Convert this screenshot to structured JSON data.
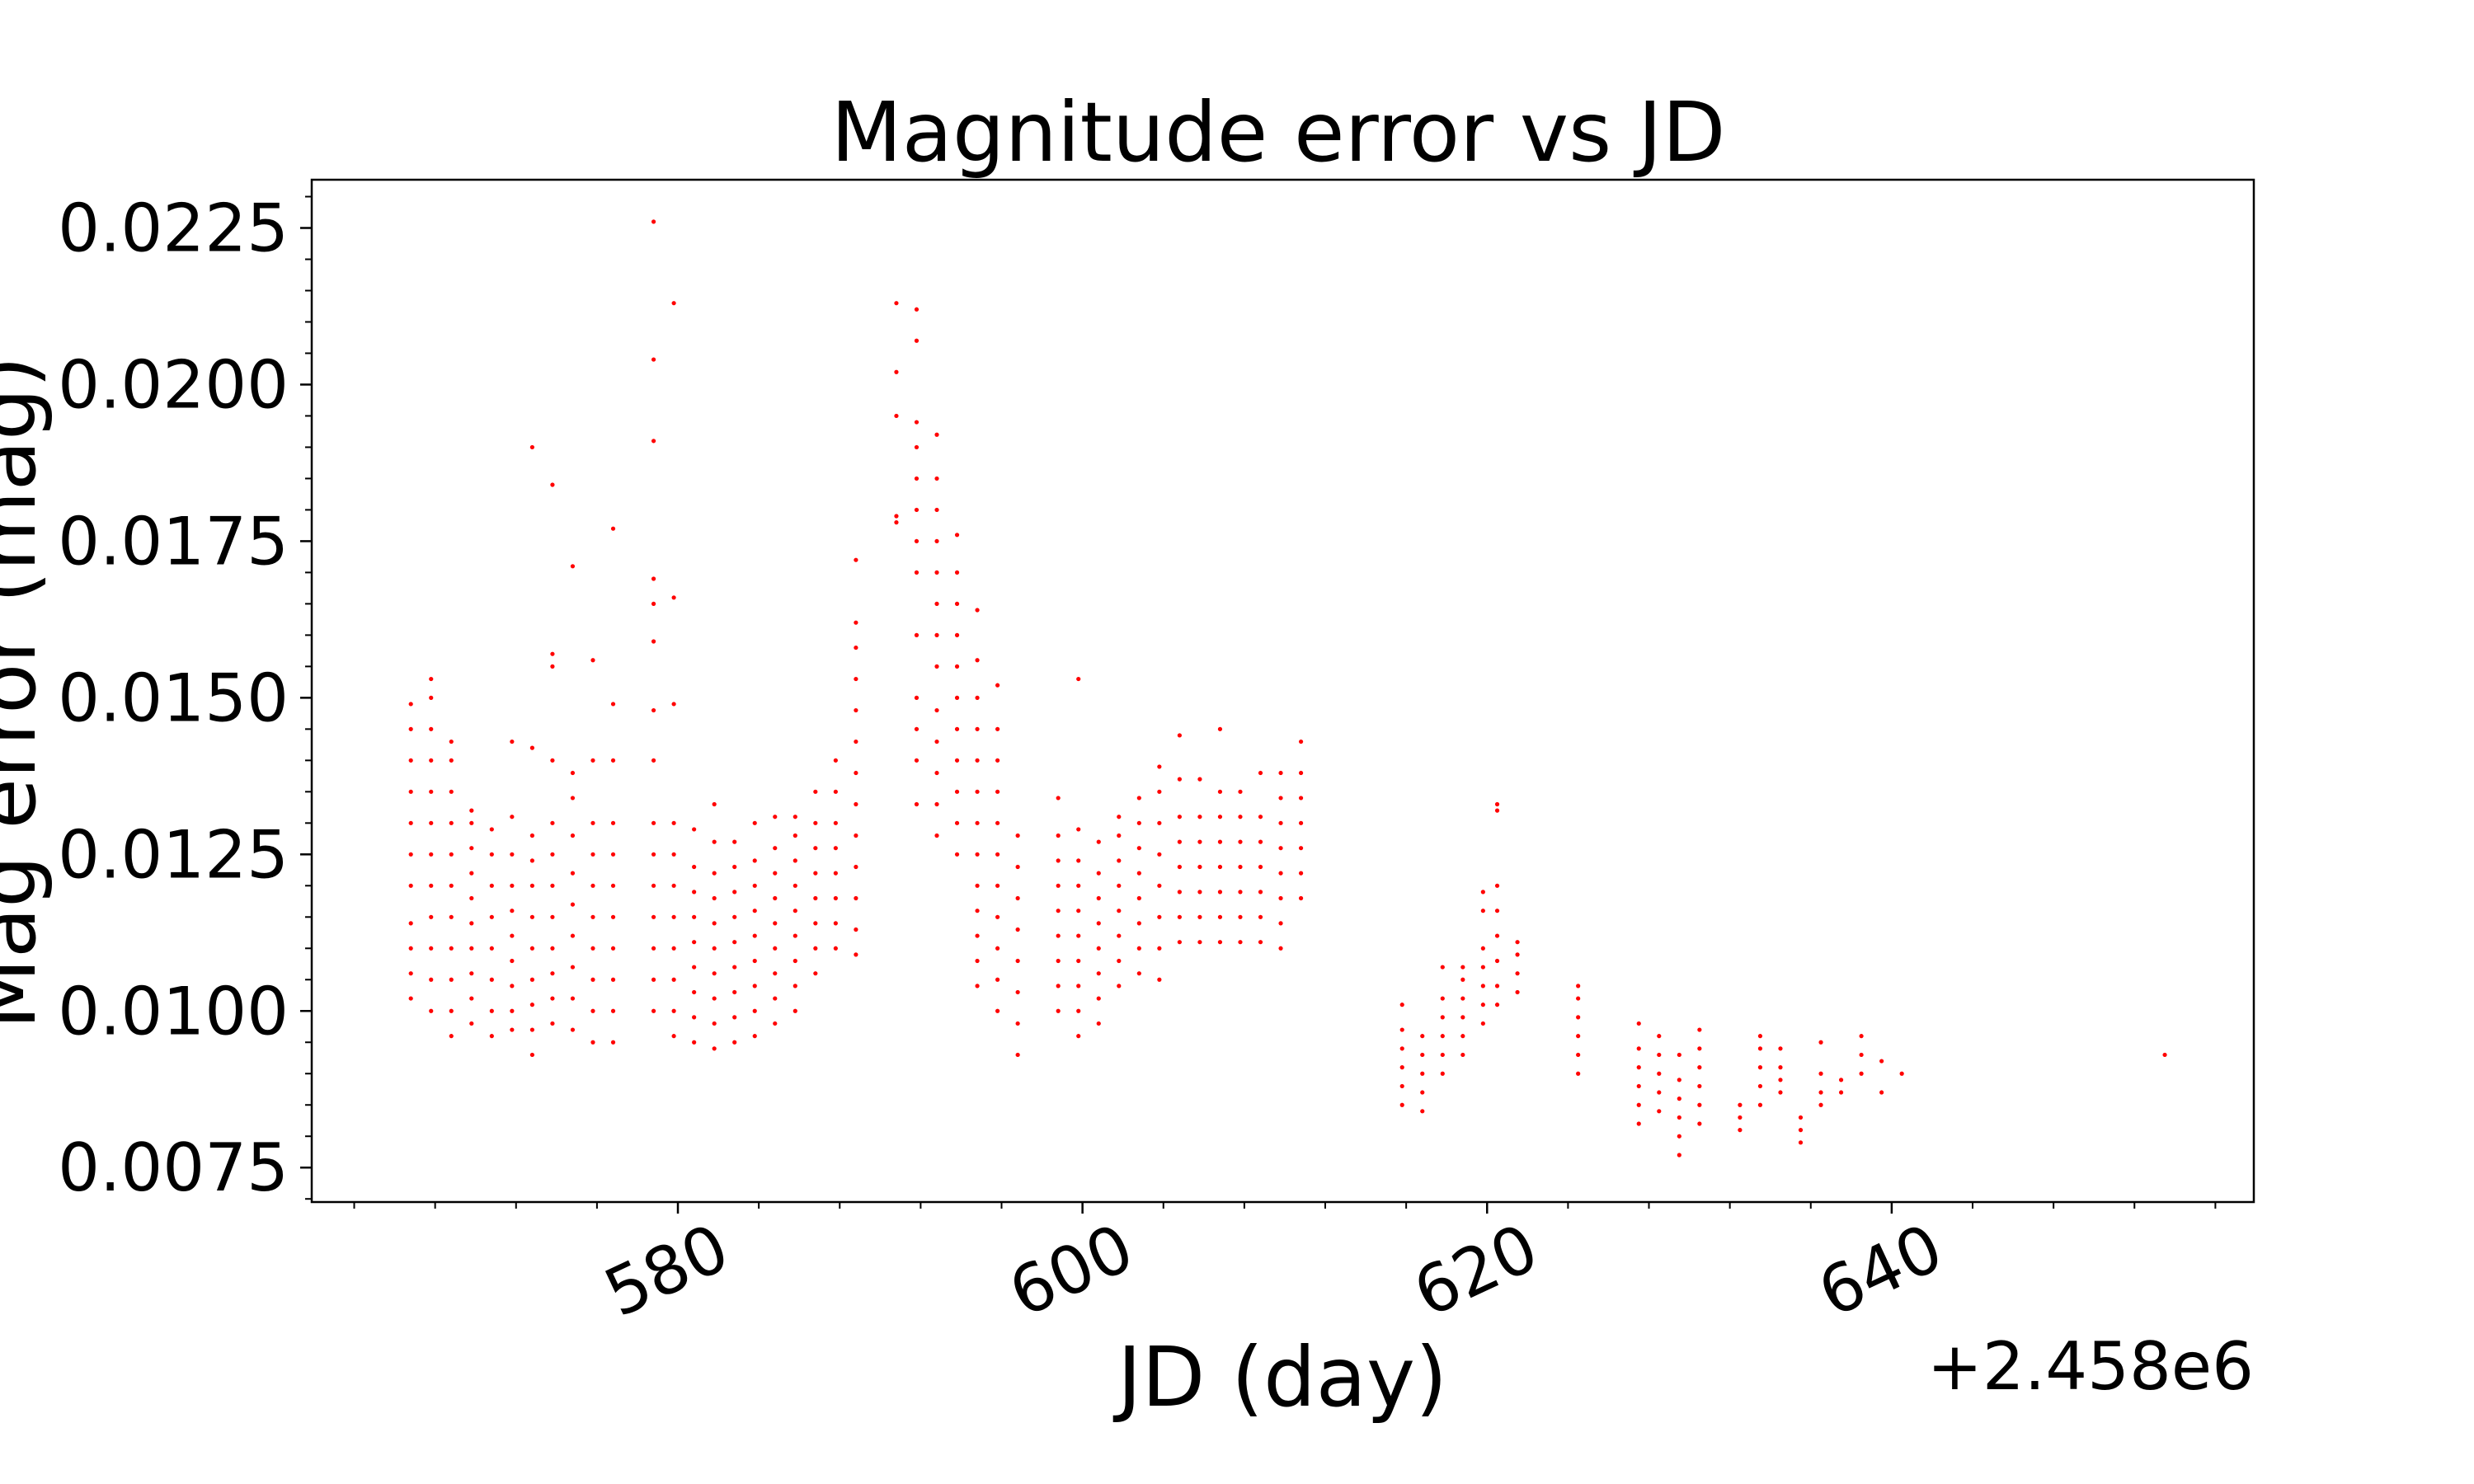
{
  "chart_data": {
    "type": "scatter",
    "title": "Magnitude error vs JD",
    "xlabel": "JD (day)",
    "ylabel": "Mag error (mag)",
    "x_offset_label": "+2.458e6",
    "x_offset": 2458000,
    "xlim": [
      561.9,
      657.9
    ],
    "ylim": [
      0.00695,
      0.02327
    ],
    "xticks": [
      580,
      600,
      620,
      640
    ],
    "xtick_labels": [
      "580",
      "600",
      "620",
      "640"
    ],
    "yticks": [
      0.0075,
      0.01,
      0.0125,
      0.015,
      0.0175,
      0.02,
      0.0225
    ],
    "ytick_labels": [
      "0.0075",
      "0.0100",
      "0.0125",
      "0.0150",
      "0.0175",
      "0.0200",
      "0.0225"
    ],
    "marker_color": "#ff0000",
    "grid": false,
    "legend": "none",
    "point_groups": [
      {
        "x": 566.8,
        "y": [
          0.0102,
          0.0106,
          0.011,
          0.0114,
          0.012,
          0.0125,
          0.013,
          0.0135,
          0.014,
          0.0145,
          0.0149
        ]
      },
      {
        "x": 567.8,
        "y": [
          0.01,
          0.0105,
          0.011,
          0.0115,
          0.012,
          0.0125,
          0.013,
          0.0135,
          0.014,
          0.0145,
          0.015,
          0.0153
        ]
      },
      {
        "x": 568.8,
        "y": [
          0.0096,
          0.01,
          0.0105,
          0.011,
          0.0115,
          0.012,
          0.0125,
          0.013,
          0.0135,
          0.014,
          0.0143
        ]
      },
      {
        "x": 569.8,
        "y": [
          0.0098,
          0.0102,
          0.0106,
          0.011,
          0.0114,
          0.0118,
          0.0122,
          0.0126,
          0.013,
          0.0132
        ]
      },
      {
        "x": 570.8,
        "y": [
          0.0096,
          0.01,
          0.0105,
          0.011,
          0.0115,
          0.012,
          0.0125,
          0.0129
        ]
      },
      {
        "x": 571.8,
        "y": [
          0.0097,
          0.01,
          0.0104,
          0.0108,
          0.0112,
          0.0116,
          0.012,
          0.0125,
          0.0131,
          0.0143
        ]
      },
      {
        "x": 572.8,
        "y": [
          0.0093,
          0.0097,
          0.0101,
          0.0105,
          0.011,
          0.0115,
          0.012,
          0.0124,
          0.0128,
          0.0142,
          0.019
        ]
      },
      {
        "x": 573.8,
        "y": [
          0.0098,
          0.0102,
          0.0106,
          0.011,
          0.0115,
          0.012,
          0.0125,
          0.013,
          0.014,
          0.0155,
          0.0157,
          0.0184
        ]
      },
      {
        "x": 574.8,
        "y": [
          0.0097,
          0.0102,
          0.0107,
          0.0112,
          0.0117,
          0.0122,
          0.0128,
          0.0134,
          0.0138,
          0.0171
        ]
      },
      {
        "x": 575.8,
        "y": [
          0.0095,
          0.01,
          0.0105,
          0.011,
          0.0115,
          0.012,
          0.0125,
          0.013,
          0.014,
          0.0156
        ]
      },
      {
        "x": 576.8,
        "y": [
          0.0095,
          0.01,
          0.0105,
          0.011,
          0.0115,
          0.012,
          0.0125,
          0.013,
          0.014,
          0.0149,
          0.0177
        ]
      },
      {
        "x": 578.8,
        "y": [
          0.01,
          0.0105,
          0.011,
          0.0115,
          0.012,
          0.0125,
          0.013,
          0.014,
          0.0148,
          0.0159,
          0.0165,
          0.0169,
          0.0191,
          0.0204,
          0.0226
        ]
      },
      {
        "x": 579.8,
        "y": [
          0.0096,
          0.01,
          0.0105,
          0.011,
          0.0115,
          0.012,
          0.0125,
          0.013,
          0.0149,
          0.0166,
          0.0213
        ]
      },
      {
        "x": 580.8,
        "y": [
          0.0095,
          0.0099,
          0.0103,
          0.0107,
          0.0111,
          0.0115,
          0.0119,
          0.0123,
          0.0129
        ]
      },
      {
        "x": 581.8,
        "y": [
          0.0094,
          0.0098,
          0.0102,
          0.0106,
          0.011,
          0.0114,
          0.0118,
          0.0122,
          0.0127,
          0.0133
        ]
      },
      {
        "x": 582.8,
        "y": [
          0.0095,
          0.0099,
          0.0103,
          0.0107,
          0.0111,
          0.0115,
          0.0119,
          0.0123,
          0.0127
        ]
      },
      {
        "x": 583.8,
        "y": [
          0.0096,
          0.01,
          0.0104,
          0.0108,
          0.0112,
          0.0116,
          0.012,
          0.0124,
          0.013
        ]
      },
      {
        "x": 584.8,
        "y": [
          0.0098,
          0.0102,
          0.0106,
          0.011,
          0.0114,
          0.0118,
          0.0122,
          0.0126,
          0.0131
        ]
      },
      {
        "x": 585.8,
        "y": [
          0.01,
          0.0104,
          0.0108,
          0.0112,
          0.0116,
          0.012,
          0.0124,
          0.0128,
          0.0131
        ]
      },
      {
        "x": 586.8,
        "y": [
          0.0106,
          0.011,
          0.0114,
          0.0118,
          0.0122,
          0.0126,
          0.013,
          0.0135
        ]
      },
      {
        "x": 587.8,
        "y": [
          0.011,
          0.0114,
          0.0118,
          0.0122,
          0.0126,
          0.013,
          0.0135,
          0.014
        ]
      },
      {
        "x": 588.8,
        "y": [
          0.0109,
          0.0113,
          0.0118,
          0.0123,
          0.0128,
          0.0133,
          0.0138,
          0.0143,
          0.0148,
          0.0153,
          0.0158,
          0.0162,
          0.0172
        ]
      },
      {
        "x": 590.8,
        "y": [
          0.0178,
          0.0179,
          0.0195,
          0.0202,
          0.0213
        ]
      },
      {
        "x": 591.8,
        "y": [
          0.0133,
          0.014,
          0.0145,
          0.015,
          0.016,
          0.017,
          0.0175,
          0.018,
          0.0185,
          0.019,
          0.0194,
          0.0207,
          0.0212
        ]
      },
      {
        "x": 592.8,
        "y": [
          0.0128,
          0.0133,
          0.0138,
          0.0143,
          0.0148,
          0.0155,
          0.016,
          0.0165,
          0.017,
          0.0175,
          0.018,
          0.0185,
          0.0192
        ]
      },
      {
        "x": 593.8,
        "y": [
          0.0125,
          0.013,
          0.0135,
          0.014,
          0.0145,
          0.015,
          0.0155,
          0.016,
          0.0165,
          0.017,
          0.0176
        ]
      },
      {
        "x": 594.8,
        "y": [
          0.0104,
          0.0108,
          0.0112,
          0.0116,
          0.012,
          0.0125,
          0.013,
          0.0135,
          0.014,
          0.0145,
          0.015,
          0.0156,
          0.0164
        ]
      },
      {
        "x": 595.8,
        "y": [
          0.01,
          0.0105,
          0.011,
          0.0115,
          0.012,
          0.0125,
          0.013,
          0.0135,
          0.014,
          0.0145,
          0.0152
        ]
      },
      {
        "x": 596.8,
        "y": [
          0.0093,
          0.0098,
          0.0103,
          0.0108,
          0.0113,
          0.0118,
          0.0123,
          0.0128
        ]
      },
      {
        "x": 598.8,
        "y": [
          0.01,
          0.0104,
          0.0108,
          0.0112,
          0.0116,
          0.012,
          0.0124,
          0.0128,
          0.0134
        ]
      },
      {
        "x": 599.8,
        "y": [
          0.0096,
          0.01,
          0.0104,
          0.0108,
          0.0112,
          0.0116,
          0.012,
          0.0124,
          0.0129,
          0.0153
        ]
      },
      {
        "x": 600.8,
        "y": [
          0.0098,
          0.0102,
          0.0106,
          0.011,
          0.0114,
          0.0118,
          0.0122,
          0.0127
        ]
      },
      {
        "x": 601.8,
        "y": [
          0.0104,
          0.0108,
          0.0112,
          0.0116,
          0.012,
          0.0124,
          0.0128,
          0.0131
        ]
      },
      {
        "x": 602.8,
        "y": [
          0.0106,
          0.011,
          0.0114,
          0.0118,
          0.0122,
          0.0126,
          0.013,
          0.0134
        ]
      },
      {
        "x": 603.8,
        "y": [
          0.0105,
          0.011,
          0.0115,
          0.012,
          0.0125,
          0.013,
          0.0135,
          0.0139
        ]
      },
      {
        "x": 604.8,
        "y": [
          0.0111,
          0.0115,
          0.0119,
          0.0123,
          0.0127,
          0.0131,
          0.0137,
          0.0144
        ]
      },
      {
        "x": 605.8,
        "y": [
          0.0111,
          0.0115,
          0.0119,
          0.0123,
          0.0127,
          0.0131,
          0.0137
        ]
      },
      {
        "x": 606.8,
        "y": [
          0.0111,
          0.0115,
          0.0119,
          0.0123,
          0.0127,
          0.0131,
          0.0135,
          0.0145
        ]
      },
      {
        "x": 607.8,
        "y": [
          0.0111,
          0.0115,
          0.0119,
          0.0123,
          0.0127,
          0.0131,
          0.0135
        ]
      },
      {
        "x": 608.8,
        "y": [
          0.0111,
          0.0115,
          0.0119,
          0.0123,
          0.0127,
          0.0131,
          0.0138
        ]
      },
      {
        "x": 609.8,
        "y": [
          0.011,
          0.0114,
          0.0118,
          0.0122,
          0.0126,
          0.013,
          0.0134,
          0.0138
        ]
      },
      {
        "x": 610.8,
        "y": [
          0.0118,
          0.0122,
          0.0126,
          0.013,
          0.0134,
          0.0138,
          0.0143
        ]
      },
      {
        "x": 615.8,
        "y": [
          0.0085,
          0.0088,
          0.0091,
          0.0094,
          0.0097,
          0.0101
        ]
      },
      {
        "x": 616.8,
        "y": [
          0.0084,
          0.0087,
          0.009,
          0.0093,
          0.0096
        ]
      },
      {
        "x": 617.8,
        "y": [
          0.009,
          0.0093,
          0.0096,
          0.0099,
          0.0102,
          0.0107
        ]
      },
      {
        "x": 618.8,
        "y": [
          0.0093,
          0.0096,
          0.0099,
          0.0102,
          0.0105,
          0.0107
        ]
      },
      {
        "x": 619.8,
        "y": [
          0.0098,
          0.0101,
          0.0104,
          0.0107,
          0.011,
          0.0116,
          0.0119
        ]
      },
      {
        "x": 620.5,
        "y": [
          0.0101,
          0.0104,
          0.0108,
          0.0112,
          0.0116,
          0.012,
          0.0132,
          0.0133
        ]
      },
      {
        "x": 621.5,
        "y": [
          0.0103,
          0.0106,
          0.0109,
          0.0111
        ]
      },
      {
        "x": 624.5,
        "y": [
          0.009,
          0.0093,
          0.0096,
          0.0099,
          0.0102,
          0.0104
        ]
      },
      {
        "x": 627.5,
        "y": [
          0.0082,
          0.0085,
          0.0088,
          0.0091,
          0.0094,
          0.0098
        ]
      },
      {
        "x": 628.5,
        "y": [
          0.0084,
          0.0087,
          0.009,
          0.0093,
          0.0096
        ]
      },
      {
        "x": 629.5,
        "y": [
          0.0077,
          0.008,
          0.0083,
          0.0086,
          0.0089,
          0.0093
        ]
      },
      {
        "x": 630.5,
        "y": [
          0.0082,
          0.0085,
          0.0088,
          0.0091,
          0.0094,
          0.0097
        ]
      },
      {
        "x": 632.5,
        "y": [
          0.0081,
          0.0083,
          0.0085
        ]
      },
      {
        "x": 633.5,
        "y": [
          0.0085,
          0.0088,
          0.0091,
          0.0094,
          0.0096
        ]
      },
      {
        "x": 634.5,
        "y": [
          0.0087,
          0.0089,
          0.0091,
          0.0094
        ]
      },
      {
        "x": 635.5,
        "y": [
          0.0079,
          0.0081,
          0.0083
        ]
      },
      {
        "x": 636.5,
        "y": [
          0.0085,
          0.0087,
          0.009,
          0.0095
        ]
      },
      {
        "x": 637.5,
        "y": [
          0.0087,
          0.0089
        ]
      },
      {
        "x": 638.5,
        "y": [
          0.009,
          0.0093,
          0.0096
        ]
      },
      {
        "x": 639.5,
        "y": [
          0.0087,
          0.0092
        ]
      },
      {
        "x": 640.5,
        "y": [
          0.009
        ]
      },
      {
        "x": 653.5,
        "y": [
          0.0093
        ]
      }
    ]
  }
}
